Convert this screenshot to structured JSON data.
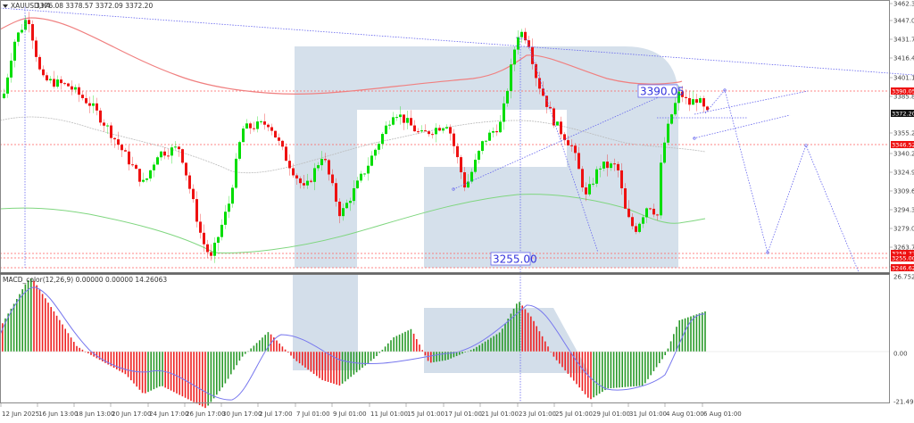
{
  "header": {
    "symbol_menu_icon": "triangle-down-icon",
    "symbol": "XAUUSD,H4",
    "ohlc": "3376.08 3378.57 3372.09 3372.20"
  },
  "indicator": {
    "label": "MACD_color(12,26,9) 0.00000 0.00000 14.26063"
  },
  "colors": {
    "bull": "#00dd00",
    "bear": "#ee1111",
    "ma_red": "#f08080",
    "ma_green": "#7fd67f",
    "ma_gray": "#bbbbbb",
    "projection": "#6666ee",
    "hline": "#ff6060",
    "watermark": "#d3deea",
    "macd_pos": "#2a9a2a",
    "macd_neg": "#ee2222",
    "signal": "#7777ee"
  },
  "price_axis": {
    "ticks": [
      "3462.30",
      "3447.00",
      "3431.70",
      "3416.40",
      "3401.10",
      "3385.80",
      "3355.20",
      "3340.20",
      "3324.90",
      "3309.60",
      "3294.30",
      "3279.00",
      "3263.70",
      "3248.40"
    ],
    "labels": [
      {
        "text": "3390.05",
        "kind": "level"
      },
      {
        "text": "3372.20",
        "kind": "bid"
      },
      {
        "text": "3346.52",
        "kind": "level"
      },
      {
        "text": "3258.77",
        "kind": "level"
      },
      {
        "text": "3255.00",
        "kind": "level"
      },
      {
        "text": "3246.62",
        "kind": "level"
      }
    ]
  },
  "macd_axis": {
    "ticks": [
      "26.7525",
      "0.00",
      "-21.49694"
    ]
  },
  "time_axis": {
    "ticks": [
      "12 Jun 2025",
      "16 Jun 13:00",
      "18 Jun 13:00",
      "20 Jun 17:00",
      "24 Jun 17:00",
      "26 Jun 17:00",
      "30 Jun 17:00",
      "2 Jul 17:00",
      "7 Jul 01:00",
      "9 Jul 01:00",
      "11 Jul 01:00",
      "15 Jul 01:00",
      "17 Jul 01:00",
      "21 Jul 01:00",
      "23 Jul 01:00",
      "25 Jul 01:00",
      "29 Jul 01:00",
      "31 Jul 01:00",
      "4 Aug 01:00",
      "6 Aug 01:00"
    ]
  },
  "annotations": {
    "upper_target": "3390.05",
    "lower_target": "3255.00"
  },
  "chart_data": [
    {
      "type": "candlestick",
      "title": "XAUUSD,H4",
      "last_bar": {
        "open": 3376.08,
        "high": 3378.57,
        "low": 3372.09,
        "close": 3372.2
      },
      "ylim": [
        3245,
        3462.3
      ],
      "x_range": [
        "12 Jun 2025",
        "6 Aug 01:00"
      ],
      "price_swings": [
        {
          "date": "12 Jun 2025",
          "price": 3390
        },
        {
          "date": "16 Jun 13:00",
          "price": 3452
        },
        {
          "date": "20 Jun 17:00",
          "price": 3340
        },
        {
          "date": "26 Jun 17:00",
          "price": 3250
        },
        {
          "date": "2 Jul 17:00",
          "price": 3362
        },
        {
          "date": "9 Jul 01:00",
          "price": 3285
        },
        {
          "date": "15 Jul 01:00",
          "price": 3375
        },
        {
          "date": "17 Jul 01:00",
          "price": 3310
        },
        {
          "date": "23 Jul 01:00",
          "price": 3438
        },
        {
          "date": "29 Jul 01:00",
          "price": 3268
        },
        {
          "date": "4 Aug 01:00",
          "price": 3388
        },
        {
          "date": "6 Aug 01:00",
          "price": 3372.2
        }
      ],
      "horizontal_levels": [
        3390.05,
        3346.52,
        3258.77,
        3255.0,
        3246.62
      ],
      "forecast_path": [
        {
          "label": "start",
          "price": 3372
        },
        {
          "label": "peak",
          "price": 3390.05
        },
        {
          "label": "low",
          "price": 3258
        },
        {
          "label": "rebound",
          "price": 3346
        },
        {
          "label": "target",
          "price": 3246
        }
      ],
      "moving_averages": [
        {
          "name": "MA red (upper)",
          "color": "#f08080"
        },
        {
          "name": "MA gray (middle)",
          "color": "#bbbbbb"
        },
        {
          "name": "MA green (lower)",
          "color": "#7fd67f"
        }
      ]
    },
    {
      "type": "bar",
      "title": "MACD_color(12,26,9) 0.00000 0.00000 14.26063",
      "ylim": [
        -21.49694,
        26.7525
      ],
      "series": [
        {
          "name": "MACD histogram",
          "description": "peaks ~25 mid-Jun, ~ -20 late Jun, ~ +11 early Jul, ~ -10 mid-Jul, ~ +18 late Jul, ~ -17 end Jul, ~ +14.26 now"
        },
        {
          "name": "Signal",
          "color": "#7777ee"
        }
      ]
    }
  ]
}
